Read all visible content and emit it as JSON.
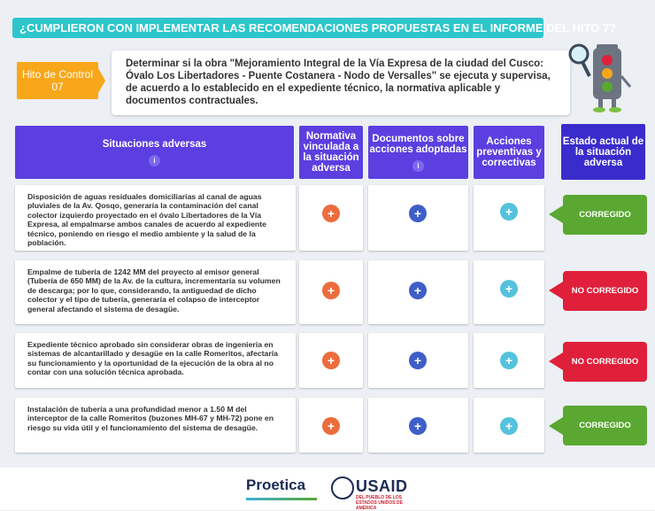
{
  "title": "¿CUMPLIERON CON IMPLEMENTAR LAS RECOMENDACIONES PROPUESTAS EN EL INFORME DEL HITO 7?",
  "hito": {
    "label": "Hito de Control 07"
  },
  "description": "Determinar si la obra \"Mejoramiento Integral de la Vía Expresa de la ciudad del Cusco: Óvalo Los Libertadores - Puente Costanera - Nodo de Versalles\" se ejecuta y supervisa, de acuerdo a lo establecido en el expediente técnico, la normativa aplicable y documentos contractuales.",
  "headers": {
    "situaciones": "Situaciones  adversas",
    "normativa": "Normativa vinculada a la situación adversa",
    "documentos": "Documentos sobre acciones adoptadas",
    "acciones": "Acciones preventivas y correctivas",
    "estado": "Estado actual de la situación adversa",
    "info": "i"
  },
  "plus_symbol": "+",
  "rows": [
    {
      "text": "Disposición de aguas residuales domiciliarias al canal de aguas pluviales de la Av. Qosqo, generaría la contaminación del canal colector izquierdo proyectado en el óvalo Libertadores de la Vía Expresa, al empalmarse ambos canales de acuerdo al expediente técnico, poniendo en riesgo el medio ambiente y la salud de la población.",
      "status": "CORREGIDO"
    },
    {
      "text": "Empalme de tubería de 1242 MM del proyecto al emisor general (Tubería de 650 MM) de la Av. de la cultura, incrementaría su volumen de descarga; por lo que, considerando, la antiguedad de dicho colector y el tipo de tubería, generaría el colapso de interceptor general afectando el sistema de desagüe.",
      "status": "NO CORREGIDO"
    },
    {
      "text": "Expediente técnico aprobado sin considerar obras de ingeniería en sistemas de alcantarillado y desagüe en la calle Romeritos, afectaría su funcionamiento y la oportunidad de la ejecución de la obra al no contar con una solución técnica aprobada.",
      "status": "NO CORREGIDO"
    },
    {
      "text": "Instalación de tubería a una profundidad menor a 1.50 M del interceptor de la calle Romeritos (buzones MH-67 y MH-72) pone en riesgo su vida útil y el funcionamiento del sistema de desagüe.",
      "status": "CORREGIDO"
    }
  ],
  "footer": {
    "proetica": "Proetica",
    "usaid": "USAID",
    "usaid_sub": "DEL PUEBLO DE LOS ESTADOS UNIDOS DE AMÉRICA"
  },
  "colors": {
    "title_bg": "#2cc6cb",
    "hito_bg": "#f7a719",
    "header_bg": "#5b3fe0",
    "corregido": "#5aa832",
    "no_corregido": "#e0203a"
  }
}
